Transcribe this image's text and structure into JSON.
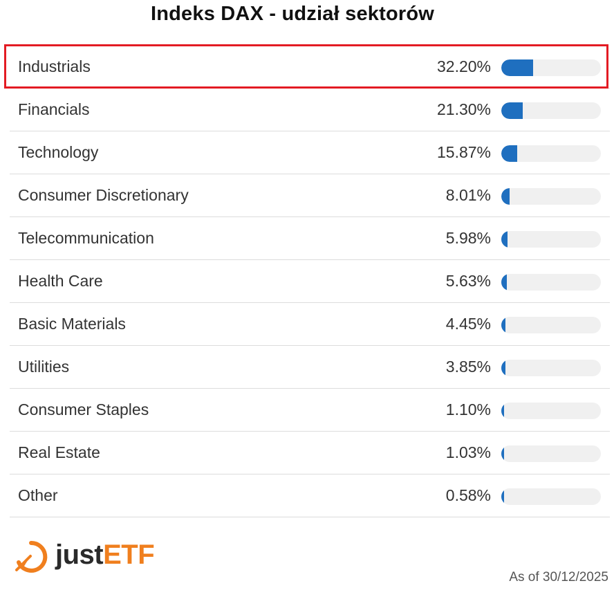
{
  "title": "Indeks DAX - udział sektorów",
  "chart_data": {
    "type": "bar",
    "title": "Indeks DAX - udział sektorów",
    "unit": "%",
    "max_value": 100,
    "highlighted_category": "Industrials",
    "bar_color": "#1f6fbf",
    "track_color": "#f0f0f0",
    "highlight_color": "#e31b23",
    "categories": [
      "Industrials",
      "Financials",
      "Technology",
      "Consumer Discretionary",
      "Telecommunication",
      "Health Care",
      "Basic Materials",
      "Utilities",
      "Consumer Staples",
      "Real Estate",
      "Other"
    ],
    "values": [
      32.2,
      21.3,
      15.87,
      8.01,
      5.98,
      5.63,
      4.45,
      3.85,
      1.1,
      1.03,
      0.58
    ],
    "value_labels": [
      "32.20%",
      "21.30%",
      "15.87%",
      "8.01%",
      "5.98%",
      "5.63%",
      "4.45%",
      "3.85%",
      "1.10%",
      "1.03%",
      "0.58%"
    ]
  },
  "logo": {
    "text_part1": "just",
    "text_part2": "ETF",
    "icon": "justetf-logo-icon",
    "color_dark": "#2a2a2a",
    "color_accent": "#f07f1e"
  },
  "footer": {
    "as_of": "As of 30/12/2025"
  }
}
